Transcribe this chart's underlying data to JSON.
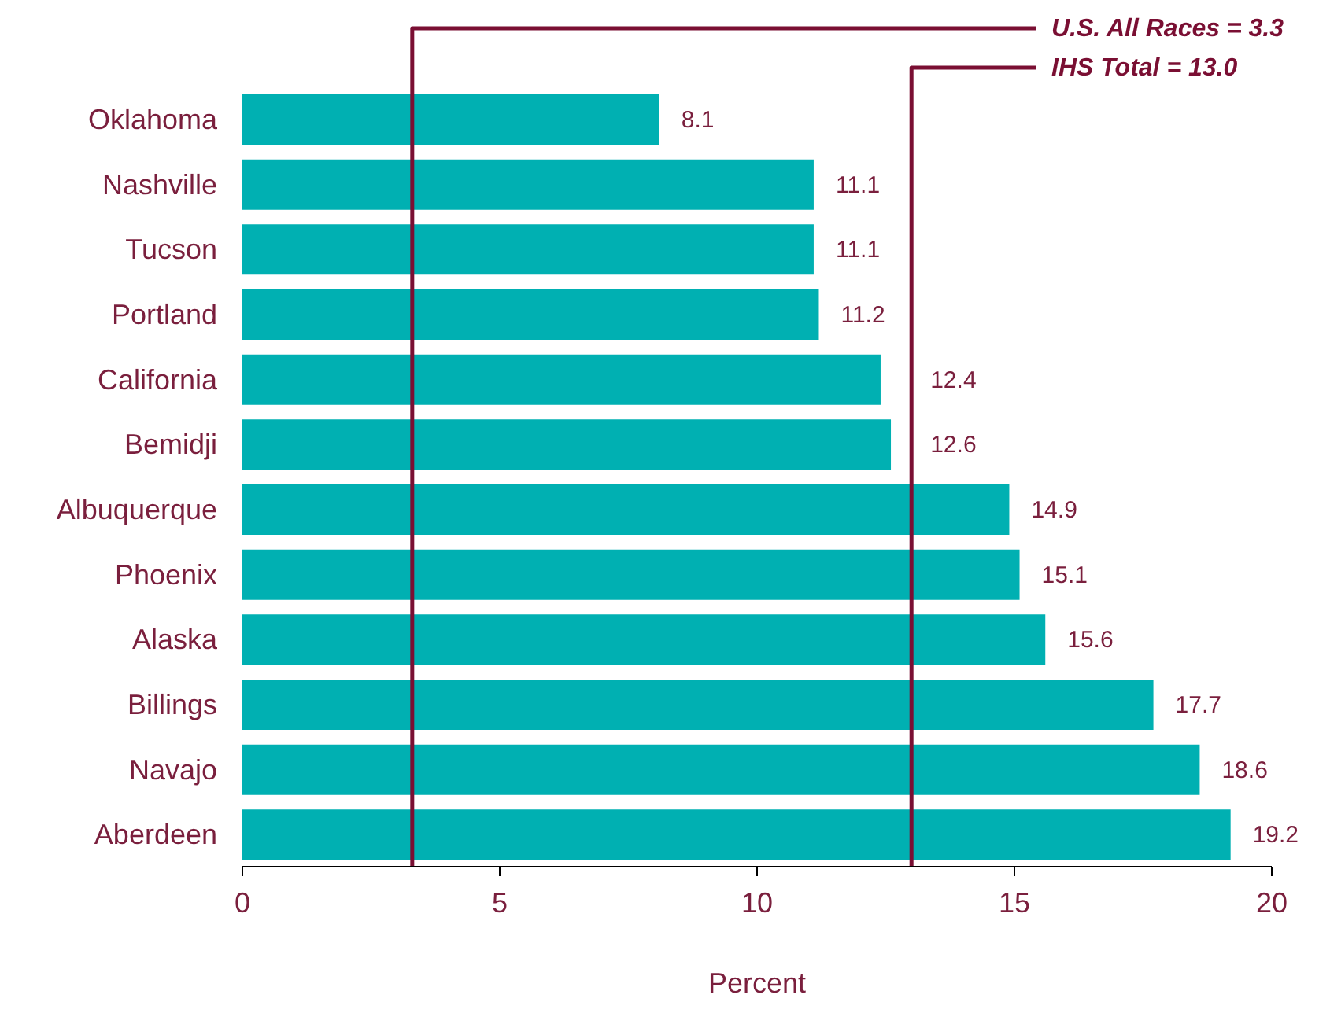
{
  "chart_data": {
    "type": "bar",
    "orientation": "horizontal",
    "xlabel": "Percent",
    "categories": [
      "Oklahoma",
      "Nashville",
      "Tucson",
      "Portland",
      "California",
      "Bemidji",
      "Albuquerque",
      "Phoenix",
      "Alaska",
      "Billings",
      "Navajo",
      "Aberdeen"
    ],
    "values": [
      8.1,
      11.1,
      11.1,
      11.2,
      12.4,
      12.6,
      14.9,
      15.1,
      15.6,
      17.7,
      18.6,
      19.2
    ],
    "color": "#00b0b2",
    "data_labels": true,
    "xlim": [
      0,
      20
    ],
    "xticks": [
      0,
      5,
      10,
      15,
      20
    ],
    "grid": false,
    "legend": false,
    "ref_lines": [
      {
        "axis": "x",
        "value": 3.3,
        "label": "U.S. All Races = 3.3",
        "color": "#7a0f33"
      },
      {
        "axis": "x",
        "value": 13.0,
        "label": "IHS Total = 13.0",
        "color": "#7a0f33"
      }
    ]
  }
}
